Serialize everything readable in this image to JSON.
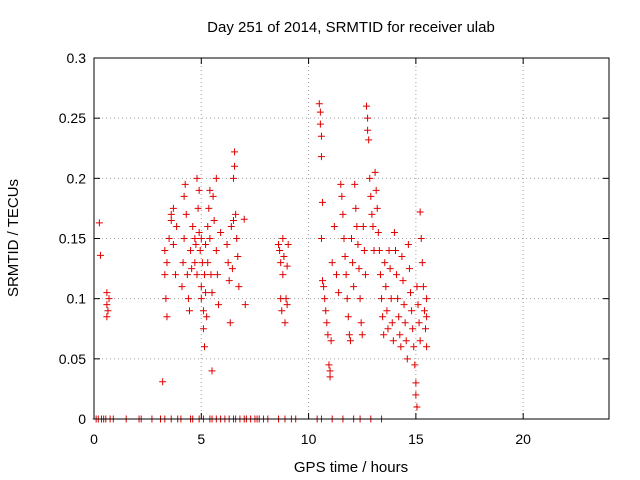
{
  "chart_data": {
    "type": "scatter",
    "title": "Day 251 of 2014, SRMTID for receiver ulab",
    "xlabel": "GPS time / hours",
    "ylabel": "SRMTID / TECUs",
    "xlim": [
      0,
      24
    ],
    "ylim": [
      0,
      0.3
    ],
    "x_ticks": [
      0,
      5,
      10,
      15,
      20
    ],
    "y_ticks": [
      0,
      0.05,
      0.1,
      0.15,
      0.2,
      0.25,
      0.3
    ],
    "x_tick_labels": [
      "0",
      "5",
      "10",
      "15",
      "20"
    ],
    "y_tick_labels": [
      "0",
      "0.05",
      "0.1",
      "0.15",
      "0.2",
      "0.25",
      "0.3"
    ],
    "grid": true,
    "marker": "plus",
    "color": "#e00000",
    "series": [
      {
        "name": "SRMTID",
        "points": [
          [
            0.25,
            0.163
          ],
          [
            0.3,
            0.136
          ],
          [
            0.6,
            0.105
          ],
          [
            0.6,
            0.095
          ],
          [
            0.65,
            0.09
          ],
          [
            0.6,
            0.085
          ],
          [
            0.7,
            0.1
          ],
          [
            3.2,
            0.031
          ],
          [
            3.3,
            0.14
          ],
          [
            3.3,
            0.12
          ],
          [
            3.35,
            0.1
          ],
          [
            3.4,
            0.085
          ],
          [
            3.4,
            0.13
          ],
          [
            3.5,
            0.15
          ],
          [
            3.6,
            0.165
          ],
          [
            3.6,
            0.17
          ],
          [
            3.7,
            0.175
          ],
          [
            3.7,
            0.145
          ],
          [
            3.8,
            0.12
          ],
          [
            3.85,
            0.16
          ],
          [
            4.1,
            0.11
          ],
          [
            4.15,
            0.13
          ],
          [
            4.2,
            0.15
          ],
          [
            4.2,
            0.185
          ],
          [
            4.25,
            0.195
          ],
          [
            4.3,
            0.17
          ],
          [
            4.35,
            0.12
          ],
          [
            4.4,
            0.1
          ],
          [
            4.45,
            0.09
          ],
          [
            4.5,
            0.14
          ],
          [
            4.55,
            0.125
          ],
          [
            4.6,
            0.16
          ],
          [
            4.7,
            0.15
          ],
          [
            4.7,
            0.13
          ],
          [
            4.75,
            0.145
          ],
          [
            4.8,
            0.12
          ],
          [
            4.8,
            0.2
          ],
          [
            4.85,
            0.175
          ],
          [
            4.9,
            0.19
          ],
          [
            4.9,
            0.155
          ],
          [
            4.95,
            0.14
          ],
          [
            5.0,
            0.15
          ],
          [
            5.0,
            0.11
          ],
          [
            5.0,
            0.1
          ],
          [
            5.05,
            0.13
          ],
          [
            5.1,
            0.09
          ],
          [
            5.1,
            0.075
          ],
          [
            5.15,
            0.06
          ],
          [
            5.15,
            0.12
          ],
          [
            5.2,
            0.145
          ],
          [
            5.2,
            0.105
          ],
          [
            5.25,
            0.085
          ],
          [
            5.3,
            0.16
          ],
          [
            5.3,
            0.13
          ],
          [
            5.35,
            0.175
          ],
          [
            5.4,
            0.19
          ],
          [
            5.4,
            0.15
          ],
          [
            5.45,
            0.12
          ],
          [
            5.5,
            0.105
          ],
          [
            5.5,
            0.04
          ],
          [
            5.55,
            0.185
          ],
          [
            5.6,
            0.165
          ],
          [
            5.7,
            0.2
          ],
          [
            5.7,
            0.14
          ],
          [
            5.75,
            0.12
          ],
          [
            5.8,
            0.095
          ],
          [
            5.9,
            0.155
          ],
          [
            6.2,
            0.145
          ],
          [
            6.25,
            0.13
          ],
          [
            6.3,
            0.115
          ],
          [
            6.35,
            0.08
          ],
          [
            6.4,
            0.16
          ],
          [
            6.45,
            0.125
          ],
          [
            6.5,
            0.165
          ],
          [
            6.5,
            0.2
          ],
          [
            6.55,
            0.21
          ],
          [
            6.55,
            0.222
          ],
          [
            6.6,
            0.17
          ],
          [
            6.65,
            0.15
          ],
          [
            6.7,
            0.135
          ],
          [
            6.75,
            0.11
          ],
          [
            7.0,
            0.166
          ],
          [
            7.05,
            0.095
          ],
          [
            8.6,
            0.145
          ],
          [
            8.65,
            0.14
          ],
          [
            8.7,
            0.13
          ],
          [
            8.7,
            0.1
          ],
          [
            8.75,
            0.09
          ],
          [
            8.8,
            0.12
          ],
          [
            8.8,
            0.15
          ],
          [
            8.85,
            0.135
          ],
          [
            8.9,
            0.08
          ],
          [
            8.95,
            0.1
          ],
          [
            9.0,
            0.127
          ],
          [
            9.0,
            0.095
          ],
          [
            9.05,
            0.145
          ],
          [
            10.5,
            0.262
          ],
          [
            10.55,
            0.255
          ],
          [
            10.55,
            0.245
          ],
          [
            10.6,
            0.235
          ],
          [
            10.6,
            0.218
          ],
          [
            10.65,
            0.18
          ],
          [
            10.6,
            0.15
          ],
          [
            10.65,
            0.115
          ],
          [
            10.7,
            0.11
          ],
          [
            10.75,
            0.1
          ],
          [
            10.8,
            0.09
          ],
          [
            10.85,
            0.08
          ],
          [
            10.9,
            0.07
          ],
          [
            10.95,
            0.045
          ],
          [
            11.0,
            0.04
          ],
          [
            11.0,
            0.035
          ],
          [
            11.05,
            0.065
          ],
          [
            11.1,
            0.13
          ],
          [
            11.2,
            0.16
          ],
          [
            11.3,
            0.12
          ],
          [
            11.4,
            0.105
          ],
          [
            11.5,
            0.195
          ],
          [
            11.55,
            0.185
          ],
          [
            11.6,
            0.17
          ],
          [
            11.65,
            0.15
          ],
          [
            11.7,
            0.135
          ],
          [
            11.75,
            0.12
          ],
          [
            11.8,
            0.1
          ],
          [
            11.85,
            0.085
          ],
          [
            11.9,
            0.07
          ],
          [
            11.95,
            0.065
          ],
          [
            12.0,
            0.15
          ],
          [
            12.05,
            0.13
          ],
          [
            12.1,
            0.11
          ],
          [
            12.15,
            0.195
          ],
          [
            12.2,
            0.175
          ],
          [
            12.25,
            0.16
          ],
          [
            12.3,
            0.145
          ],
          [
            12.35,
            0.125
          ],
          [
            12.4,
            0.1
          ],
          [
            12.45,
            0.08
          ],
          [
            12.5,
            0.07
          ],
          [
            12.55,
            0.16
          ],
          [
            12.6,
            0.14
          ],
          [
            12.65,
            0.12
          ],
          [
            12.7,
            0.26
          ],
          [
            12.75,
            0.25
          ],
          [
            12.75,
            0.24
          ],
          [
            12.8,
            0.232
          ],
          [
            12.85,
            0.2
          ],
          [
            12.9,
            0.185
          ],
          [
            12.95,
            0.17
          ],
          [
            13.0,
            0.16
          ],
          [
            13.05,
            0.14
          ],
          [
            13.1,
            0.205
          ],
          [
            13.15,
            0.19
          ],
          [
            13.2,
            0.175
          ],
          [
            13.25,
            0.155
          ],
          [
            13.3,
            0.14
          ],
          [
            13.35,
            0.12
          ],
          [
            13.4,
            0.1
          ],
          [
            13.45,
            0.085
          ],
          [
            13.5,
            0.07
          ],
          [
            13.55,
            0.13
          ],
          [
            13.6,
            0.11
          ],
          [
            13.65,
            0.09
          ],
          [
            13.7,
            0.075
          ],
          [
            13.75,
            0.14
          ],
          [
            13.8,
            0.125
          ],
          [
            13.85,
            0.1
          ],
          [
            13.9,
            0.08
          ],
          [
            13.95,
            0.065
          ],
          [
            14.0,
            0.155
          ],
          [
            14.05,
            0.14
          ],
          [
            14.1,
            0.12
          ],
          [
            14.15,
            0.1
          ],
          [
            14.2,
            0.085
          ],
          [
            14.25,
            0.07
          ],
          [
            14.3,
            0.06
          ],
          [
            14.35,
            0.135
          ],
          [
            14.4,
            0.115
          ],
          [
            14.45,
            0.095
          ],
          [
            14.5,
            0.08
          ],
          [
            14.55,
            0.065
          ],
          [
            14.6,
            0.05
          ],
          [
            14.65,
            0.145
          ],
          [
            14.7,
            0.125
          ],
          [
            14.75,
            0.105
          ],
          [
            14.8,
            0.09
          ],
          [
            14.85,
            0.075
          ],
          [
            14.9,
            0.06
          ],
          [
            14.95,
            0.045
          ],
          [
            15.0,
            0.03
          ],
          [
            15.0,
            0.02
          ],
          [
            15.05,
            0.01
          ],
          [
            15.05,
            0.11
          ],
          [
            15.1,
            0.095
          ],
          [
            15.15,
            0.08
          ],
          [
            15.2,
            0.065
          ],
          [
            15.2,
            0.172
          ],
          [
            15.25,
            0.15
          ],
          [
            15.3,
            0.13
          ],
          [
            15.35,
            0.11
          ],
          [
            15.4,
            0.09
          ],
          [
            15.45,
            0.075
          ],
          [
            15.5,
            0.06
          ],
          [
            15.5,
            0.1
          ],
          [
            15.5,
            0.085
          ]
        ]
      }
    ],
    "zero_markers_x": [
      0.1,
      0.2,
      0.35,
      0.45,
      0.55,
      0.75,
      0.9,
      1.5,
      2.1,
      2.2,
      2.7,
      3.1,
      3.3,
      3.6,
      3.9,
      4.05,
      4.5,
      4.6,
      4.9,
      5.1,
      5.4,
      5.5,
      5.7,
      5.9,
      6.1,
      6.3,
      6.5,
      6.6,
      6.8,
      7.0,
      7.1,
      7.3,
      7.5,
      7.6,
      7.7,
      7.9,
      8.1,
      8.6,
      8.9,
      9.2,
      9.4,
      10.4,
      10.6,
      11.1,
      11.6,
      12.1,
      12.4,
      12.9,
      13.4
    ]
  }
}
